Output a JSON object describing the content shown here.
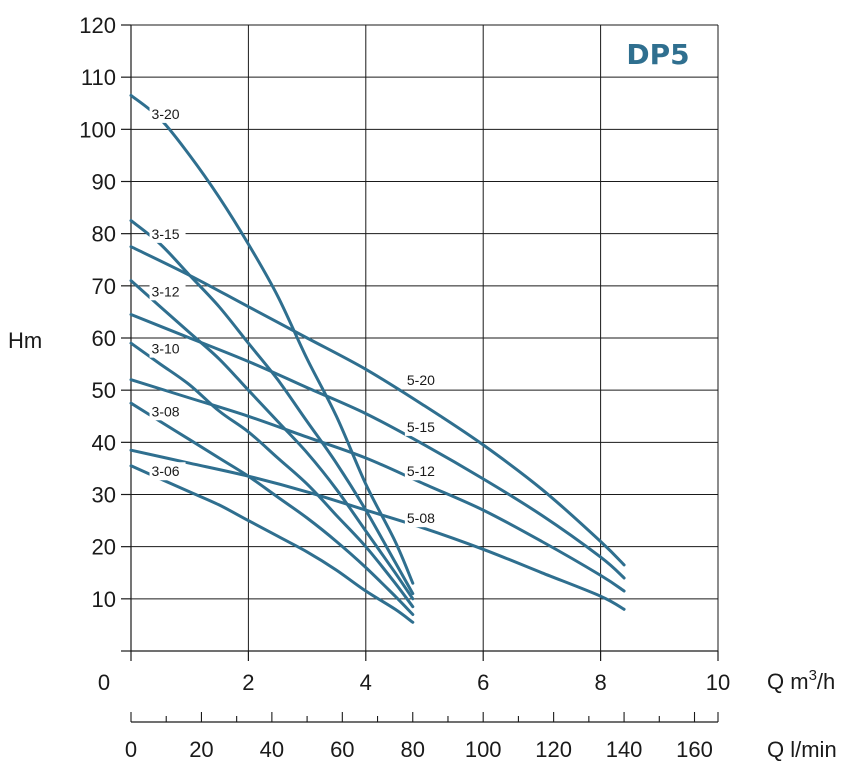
{
  "chart_data": {
    "type": "line",
    "title": "DP5",
    "ylabel": "Hm",
    "xlabel_unit": "Q m",
    "xlabel_sup": "3",
    "xlabel_tail": "/h",
    "x2label": "Q l/min",
    "xlim": [
      0,
      10
    ],
    "ylim": [
      0,
      120
    ],
    "x2lim": [
      0,
      166.67
    ],
    "x_ticks": [
      0,
      2,
      4,
      6,
      8,
      10
    ],
    "y_ticks": [
      10,
      20,
      30,
      40,
      50,
      60,
      70,
      80,
      90,
      100,
      110,
      120
    ],
    "x2_ticks": [
      0,
      20,
      40,
      60,
      80,
      100,
      120,
      140,
      160
    ],
    "grid": true,
    "colors": {
      "curve": "#2f6f8f",
      "grid": "#1a1a1a",
      "title": "#2f6f8f"
    },
    "series": [
      {
        "name": "3-20",
        "label_at": [
          0.35,
          102
        ],
        "x": [
          0,
          0.5,
          1,
          1.5,
          2,
          2.5,
          3,
          3.5,
          4,
          4.5,
          4.8
        ],
        "y": [
          106.5,
          102,
          95,
          87,
          78,
          68,
          56,
          45,
          32,
          21,
          13
        ]
      },
      {
        "name": "3-15",
        "label_at": [
          0.35,
          79
        ],
        "x": [
          0,
          0.5,
          1,
          1.5,
          2,
          2.5,
          3,
          3.5,
          4,
          4.5,
          4.8
        ],
        "y": [
          82.5,
          78,
          72,
          66,
          59,
          52,
          44,
          36,
          27,
          17,
          11
        ]
      },
      {
        "name": "3-12",
        "label_at": [
          0.35,
          68
        ],
        "x": [
          0,
          0.5,
          1,
          1.5,
          2,
          2.5,
          3,
          3.5,
          4,
          4.5,
          4.8
        ],
        "y": [
          71,
          66,
          61,
          56,
          50,
          44,
          38,
          31,
          23,
          15,
          10
        ]
      },
      {
        "name": "3-10",
        "label_at": [
          0.35,
          57
        ],
        "x": [
          0,
          0.5,
          1,
          1.5,
          2,
          2.5,
          3,
          3.5,
          4,
          4.5,
          4.8
        ],
        "y": [
          59,
          55,
          51,
          46,
          42,
          37,
          32,
          26,
          20,
          13,
          8.5
        ]
      },
      {
        "name": "3-08",
        "label_at": [
          0.35,
          45
        ],
        "x": [
          0,
          0.5,
          1,
          1.5,
          2,
          2.5,
          3,
          3.5,
          4,
          4.5,
          4.8
        ],
        "y": [
          47.5,
          44,
          40.5,
          37,
          33.5,
          29.5,
          25.5,
          21,
          16,
          10.5,
          7
        ]
      },
      {
        "name": "3-06",
        "label_at": [
          0.35,
          33.5
        ],
        "x": [
          0,
          0.5,
          1,
          1.5,
          2,
          2.5,
          3,
          3.5,
          4,
          4.5,
          4.8
        ],
        "y": [
          35.5,
          33,
          30.5,
          28,
          25,
          22,
          19,
          15.5,
          11.5,
          8,
          5.5
        ]
      },
      {
        "name": "5-20",
        "label_at": [
          4.7,
          51
        ],
        "x": [
          0,
          1,
          2,
          3,
          4,
          5,
          6,
          7,
          8,
          8.4
        ],
        "y": [
          77.5,
          72,
          66,
          60,
          54,
          47,
          39.5,
          31,
          21,
          16.5
        ]
      },
      {
        "name": "5-15",
        "label_at": [
          4.7,
          42
        ],
        "x": [
          0,
          1,
          2,
          3,
          4,
          5,
          6,
          7,
          8,
          8.4
        ],
        "y": [
          64.5,
          60,
          55.5,
          50.5,
          45.5,
          39.5,
          33,
          26,
          18,
          14
        ]
      },
      {
        "name": "5-12",
        "label_at": [
          4.7,
          33.5
        ],
        "x": [
          0,
          1,
          2,
          3,
          4,
          5,
          6,
          7,
          8,
          8.4
        ],
        "y": [
          52,
          48.5,
          45,
          41,
          37,
          32,
          27,
          21,
          14.5,
          11.5
        ]
      },
      {
        "name": "5-08",
        "label_at": [
          4.7,
          24.5
        ],
        "x": [
          0,
          1,
          2,
          3,
          4,
          5,
          6,
          7,
          8,
          8.4
        ],
        "y": [
          38.5,
          36,
          33.5,
          30.5,
          27,
          23.5,
          19.5,
          15,
          10.5,
          8
        ]
      }
    ]
  }
}
